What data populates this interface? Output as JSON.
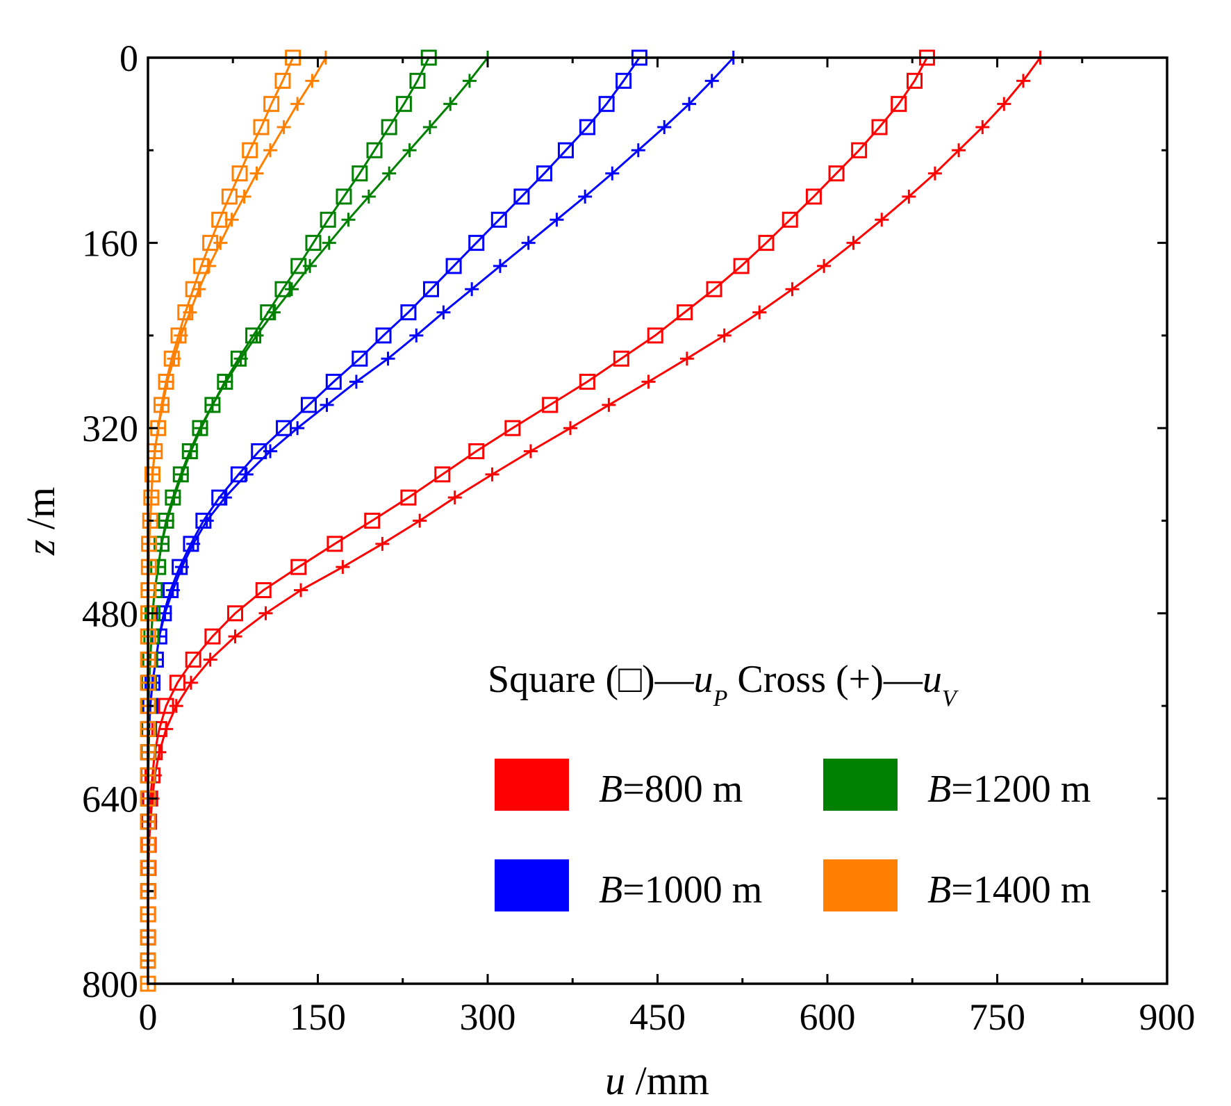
{
  "chart_data": {
    "type": "line",
    "xlabel_var": "u",
    "xlabel_unit": " /mm",
    "ylabel_var": "z",
    "ylabel_unit": " /m",
    "xlim": [
      0,
      900
    ],
    "ylim": [
      0,
      800
    ],
    "y_inverted": true,
    "x_axis_position": "top",
    "x_ticks": [
      "0",
      "150",
      "300",
      "450",
      "600",
      "750",
      "900"
    ],
    "y_ticks": [
      "0",
      "160",
      "320",
      "480",
      "640",
      "800"
    ],
    "legend_header": {
      "square_label": "Square (□)—",
      "square_var": "u",
      "square_sub": "P",
      "cross_label": "Cross   (+)—",
      "cross_var": "u",
      "cross_sub": "V"
    },
    "legend": [
      {
        "var": "B",
        "text": "=800 m",
        "color": "#ff0000"
      },
      {
        "var": "B",
        "text": "=1200 m",
        "color": "#008000"
      },
      {
        "var": "B",
        "text": "=1000 m",
        "color": "#0000ff"
      },
      {
        "var": "B",
        "text": "=1400 m",
        "color": "#ff8000"
      }
    ],
    "series": [
      {
        "name": "B=800 m",
        "color": "#ff0000",
        "square": {
          "z": [
            0,
            20,
            40,
            60,
            80,
            100,
            120,
            140,
            160,
            180,
            200,
            220,
            240,
            260,
            280,
            300,
            320,
            340,
            360,
            380,
            400,
            420,
            440,
            460,
            480,
            500,
            520,
            540,
            560,
            580,
            600,
            620,
            640,
            660,
            680,
            700,
            720,
            740,
            760,
            780,
            800
          ],
          "u": [
            688,
            677,
            663,
            646,
            628,
            608,
            588,
            567,
            546,
            524,
            500,
            474,
            448,
            418,
            388,
            355,
            322,
            290,
            260,
            230,
            198,
            165,
            133,
            102,
            77,
            57,
            40,
            26,
            16,
            10,
            6,
            4,
            2,
            1,
            0.6,
            0.4,
            0.2,
            0.1,
            0.1,
            0,
            0
          ]
        },
        "cross": {
          "z": [
            0,
            20,
            40,
            60,
            80,
            100,
            120,
            140,
            160,
            180,
            200,
            220,
            240,
            260,
            280,
            300,
            320,
            340,
            360,
            380,
            400,
            420,
            440,
            460,
            480,
            500,
            520,
            540,
            560,
            580,
            600,
            620,
            640,
            660,
            680,
            700,
            720,
            740,
            760,
            780,
            800
          ],
          "u": [
            788,
            773,
            756,
            737,
            716,
            695,
            672,
            648,
            623,
            597,
            569,
            540,
            509,
            476,
            442,
            407,
            373,
            338,
            304,
            271,
            240,
            207,
            172,
            135,
            104,
            77,
            55,
            38,
            25,
            16,
            10,
            6,
            4,
            2,
            1,
            0.5,
            0.3,
            0.2,
            0.1,
            0,
            0
          ]
        }
      },
      {
        "name": "B=1000 m",
        "color": "#0000ff",
        "square": {
          "z": [
            0,
            20,
            40,
            60,
            80,
            100,
            120,
            140,
            160,
            180,
            200,
            220,
            240,
            260,
            280,
            300,
            320,
            340,
            360,
            380,
            400,
            420,
            440,
            460,
            480,
            500,
            520,
            540,
            560,
            580,
            600,
            620,
            640,
            660,
            680,
            700,
            720,
            740,
            760,
            780,
            800
          ],
          "u": [
            434,
            420,
            405,
            388,
            369,
            350,
            330,
            310,
            290,
            270,
            250,
            230,
            208,
            187,
            164,
            142,
            120,
            98,
            80,
            63,
            49,
            38,
            28,
            20,
            14,
            10,
            7,
            4,
            2,
            1,
            0.5,
            0.3,
            0.2,
            0.1,
            0,
            0,
            0,
            0,
            0,
            0,
            0
          ]
        },
        "cross": {
          "z": [
            0,
            20,
            40,
            60,
            80,
            100,
            120,
            140,
            160,
            180,
            200,
            220,
            240,
            260,
            280,
            300,
            320,
            340,
            360,
            380,
            400,
            420,
            440,
            460,
            480,
            500,
            520,
            540,
            560,
            580,
            600,
            620,
            640,
            660,
            680,
            700,
            720,
            740,
            760,
            780,
            800
          ],
          "u": [
            517,
            498,
            478,
            456,
            433,
            410,
            386,
            361,
            336,
            311,
            286,
            261,
            237,
            212,
            184,
            158,
            132,
            108,
            87,
            68,
            52,
            40,
            30,
            22,
            15,
            10,
            7,
            4,
            2,
            1,
            0.5,
            0.3,
            0.2,
            0.1,
            0,
            0,
            0,
            0,
            0,
            0,
            0
          ]
        }
      },
      {
        "name": "B=1200 m",
        "color": "#008000",
        "square": {
          "z": [
            0,
            20,
            40,
            60,
            80,
            100,
            120,
            140,
            160,
            180,
            200,
            220,
            240,
            260,
            280,
            300,
            320,
            340,
            360,
            380,
            400,
            420,
            440,
            460,
            480,
            500,
            520,
            540,
            560,
            580,
            600,
            620,
            640,
            660,
            680,
            700,
            720,
            740,
            760,
            780,
            800
          ],
          "u": [
            248,
            238,
            226,
            213,
            200,
            187,
            173,
            159,
            146,
            133,
            119,
            106,
            93,
            80,
            68,
            57,
            46,
            37,
            29,
            22,
            16,
            12,
            9,
            6,
            4,
            3,
            2,
            1,
            0.5,
            0.3,
            0.2,
            0.1,
            0,
            0,
            0,
            0,
            0,
            0,
            0,
            0,
            0
          ]
        },
        "cross": {
          "z": [
            0,
            20,
            40,
            60,
            80,
            100,
            120,
            140,
            160,
            180,
            200,
            220,
            240,
            260,
            280,
            300,
            320,
            340,
            360,
            380,
            400,
            420,
            440,
            460,
            480,
            500,
            520,
            540,
            560,
            580,
            600,
            620,
            640,
            660,
            680,
            700,
            720,
            740,
            760,
            780,
            800
          ],
          "u": [
            300,
            284,
            267,
            249,
            231,
            213,
            195,
            177,
            160,
            143,
            127,
            111,
            96,
            82,
            69,
            57,
            47,
            38,
            30,
            23,
            17,
            12,
            9,
            6,
            4,
            3,
            2,
            1,
            0.5,
            0.3,
            0.2,
            0.1,
            0,
            0,
            0,
            0,
            0,
            0,
            0,
            0,
            0
          ]
        }
      },
      {
        "name": "B=1400 m",
        "color": "#ff8000",
        "square": {
          "z": [
            0,
            20,
            40,
            60,
            80,
            100,
            120,
            140,
            160,
            180,
            200,
            220,
            240,
            260,
            280,
            300,
            320,
            340,
            360,
            380,
            400,
            420,
            440,
            460,
            480,
            500,
            520,
            540,
            560,
            580,
            600,
            620,
            640,
            660,
            680,
            700,
            720,
            740,
            760,
            780,
            800
          ],
          "u": [
            128,
            119,
            109,
            100,
            90,
            81,
            72,
            63,
            55,
            47,
            40,
            33,
            27,
            21,
            16,
            12,
            9,
            6,
            4,
            3,
            2,
            1,
            0.8,
            0.5,
            0.3,
            0.2,
            0.1,
            0,
            0,
            0,
            0,
            0,
            0,
            0,
            0,
            0,
            0,
            0,
            0,
            0,
            0
          ]
        },
        "cross": {
          "z": [
            0,
            20,
            40,
            60,
            80,
            100,
            120,
            140,
            160,
            180,
            200,
            220,
            240,
            260,
            280,
            300,
            320,
            340,
            360,
            380,
            400,
            420,
            440,
            460,
            480,
            500,
            520,
            540,
            560,
            580,
            600,
            620,
            640,
            660,
            680,
            700,
            720,
            740,
            760,
            780,
            800
          ],
          "u": [
            157,
            145,
            132,
            120,
            108,
            96,
            85,
            74,
            64,
            54,
            45,
            37,
            29,
            23,
            17,
            13,
            9,
            6,
            4,
            3,
            2,
            1,
            0.8,
            0.5,
            0.3,
            0.2,
            0.1,
            0,
            0,
            0,
            0,
            0,
            0,
            0,
            0,
            0,
            0,
            0,
            0,
            0,
            0
          ]
        }
      }
    ]
  }
}
